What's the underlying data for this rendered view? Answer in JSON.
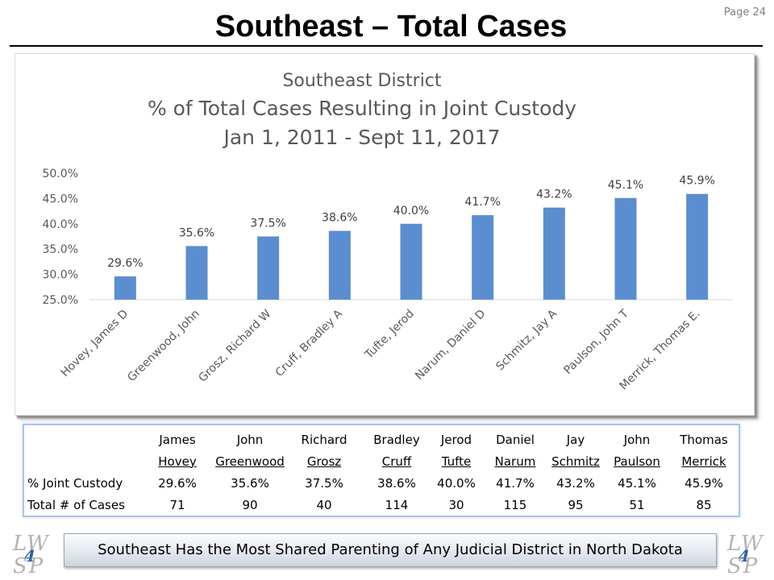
{
  "header": {
    "title": "Southeast – Total Cases",
    "page_label": "Page 24"
  },
  "chart_data": {
    "type": "bar",
    "title_lines": [
      "Southeast District",
      "% of Total Cases Resulting in Joint Custody",
      "Jan 1, 2011 - Sept 11, 2017"
    ],
    "categories": [
      "Hovey, James D",
      "Greenwood, John",
      "Grosz, Richard W",
      "Cruff, Bradley A",
      "Tufte, Jerod",
      "Narum, Daniel D",
      "Schmitz, Jay A",
      "Paulson, John T",
      "Merrick, Thomas E."
    ],
    "values": [
      29.6,
      35.6,
      37.5,
      38.6,
      40.0,
      41.7,
      43.2,
      45.1,
      45.9
    ],
    "data_labels": [
      "29.6%",
      "35.6%",
      "37.5%",
      "38.6%",
      "40.0%",
      "41.7%",
      "43.2%",
      "45.1%",
      "45.9%"
    ],
    "ylim": [
      25,
      50
    ],
    "yticks": [
      25,
      30,
      35,
      40,
      45,
      50
    ],
    "ytick_labels": [
      "25.0%",
      "30.0%",
      "35.0%",
      "40.0%",
      "45.0%",
      "50.0%"
    ],
    "grid": false,
    "bar_color": "#5b8ed0",
    "xlabel": "",
    "ylabel": ""
  },
  "table": {
    "first_names": [
      "James",
      "John",
      "Richard",
      "Bradley",
      "Jerod",
      "Daniel",
      "Jay",
      "John",
      "Thomas"
    ],
    "last_names": [
      "Hovey",
      "Greenwood",
      "Grosz",
      "Cruff",
      "Tufte",
      "Narum",
      "Schmitz",
      "Paulson",
      "Merrick"
    ],
    "joint_label": "% Joint Custody",
    "joint": [
      "29.6%",
      "35.6%",
      "37.5%",
      "38.6%",
      "40.0%",
      "41.7%",
      "43.2%",
      "45.1%",
      "45.9%"
    ],
    "total_label": "Total # of Cases",
    "totals": [
      "71",
      "90",
      "40",
      "114",
      "30",
      "115",
      "95",
      "51",
      "85"
    ]
  },
  "footer": {
    "banner": "Southeast Has the Most Shared Parenting of Any Judicial District in North Dakota",
    "logo_top": "LW",
    "logo_number": "4",
    "logo_bottom": "SP"
  }
}
